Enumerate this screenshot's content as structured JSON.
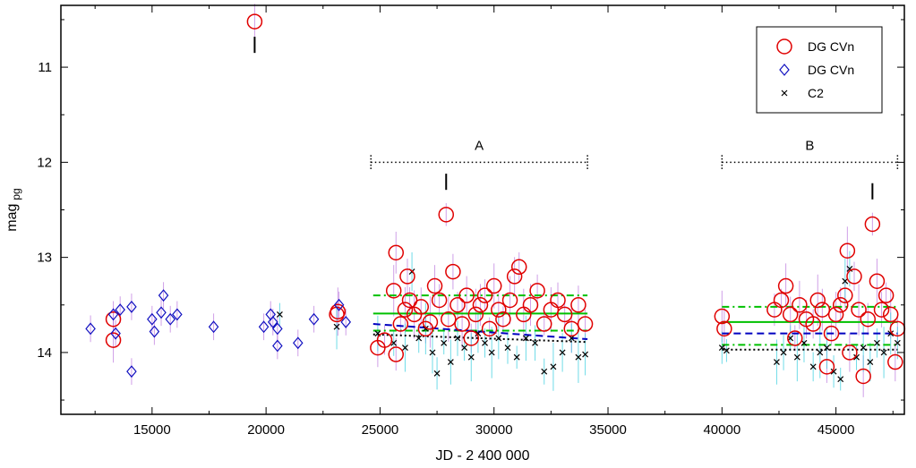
{
  "chart_data": {
    "type": "scatter",
    "title": "",
    "xlabel": "JD - 2 400 000",
    "ylabel_main": "mag",
    "ylabel_sub": "pg",
    "xlim": [
      11000,
      48000
    ],
    "ylim": [
      10.35,
      14.65
    ],
    "y_inverted": true,
    "xticks": [
      15000,
      20000,
      25000,
      30000,
      35000,
      40000,
      45000
    ],
    "yticks": [
      11,
      12,
      13,
      14
    ],
    "grid": false,
    "legend_position": "top-right",
    "colors": {
      "series_red": "#e00000",
      "series_blue": "#1010c0",
      "series_black": "#000000",
      "errorbar_cyan": "#40d0e0",
      "errorbar_violet": "#c080e0",
      "fit_blue": "#0000c0",
      "fit_green": "#00c000",
      "fit_black": "#000000"
    },
    "series": [
      {
        "name": "DG CVn",
        "marker": "circle",
        "color": "#e00000",
        "points": [
          [
            13300,
            13.65
          ],
          [
            13300,
            13.87
          ],
          [
            19500,
            10.52
          ],
          [
            23100,
            13.6
          ],
          [
            23150,
            13.57
          ],
          [
            24900,
            13.95
          ],
          [
            25200,
            13.87
          ],
          [
            25600,
            13.35
          ],
          [
            25700,
            12.95
          ],
          [
            25700,
            14.02
          ],
          [
            25900,
            13.7
          ],
          [
            26100,
            13.55
          ],
          [
            26200,
            13.2
          ],
          [
            26300,
            13.45
          ],
          [
            26500,
            13.6
          ],
          [
            26800,
            13.52
          ],
          [
            27000,
            13.75
          ],
          [
            27200,
            13.68
          ],
          [
            27400,
            13.3
          ],
          [
            27600,
            13.45
          ],
          [
            27900,
            12.55
          ],
          [
            28000,
            13.65
          ],
          [
            28200,
            13.15
          ],
          [
            28400,
            13.5
          ],
          [
            28600,
            13.7
          ],
          [
            28800,
            13.4
          ],
          [
            29000,
            13.85
          ],
          [
            29200,
            13.6
          ],
          [
            29400,
            13.5
          ],
          [
            29600,
            13.4
          ],
          [
            29800,
            13.75
          ],
          [
            30000,
            13.3
          ],
          [
            30200,
            13.55
          ],
          [
            30400,
            13.65
          ],
          [
            30700,
            13.45
          ],
          [
            30900,
            13.2
          ],
          [
            31100,
            13.1
          ],
          [
            31300,
            13.6
          ],
          [
            31600,
            13.5
          ],
          [
            31900,
            13.35
          ],
          [
            32200,
            13.7
          ],
          [
            32500,
            13.55
          ],
          [
            32800,
            13.45
          ],
          [
            33100,
            13.6
          ],
          [
            33400,
            13.75
          ],
          [
            33700,
            13.5
          ],
          [
            34000,
            13.7
          ],
          [
            40000,
            13.62
          ],
          [
            40100,
            13.75
          ],
          [
            42300,
            13.55
          ],
          [
            42600,
            13.45
          ],
          [
            42800,
            13.3
          ],
          [
            43000,
            13.6
          ],
          [
            43200,
            13.85
          ],
          [
            43400,
            13.5
          ],
          [
            43700,
            13.65
          ],
          [
            44000,
            13.7
          ],
          [
            44200,
            13.45
          ],
          [
            44400,
            13.55
          ],
          [
            44600,
            14.15
          ],
          [
            44800,
            13.8
          ],
          [
            45000,
            13.6
          ],
          [
            45200,
            13.5
          ],
          [
            45400,
            13.4
          ],
          [
            45500,
            12.93
          ],
          [
            45600,
            14.0
          ],
          [
            45800,
            13.2
          ],
          [
            46000,
            13.55
          ],
          [
            46200,
            14.25
          ],
          [
            46400,
            13.65
          ],
          [
            46600,
            12.65
          ],
          [
            46800,
            13.25
          ],
          [
            47000,
            13.55
          ],
          [
            47200,
            13.4
          ],
          [
            47400,
            13.6
          ],
          [
            47600,
            14.1
          ],
          [
            47700,
            13.75
          ]
        ]
      },
      {
        "name": "DG CVn",
        "marker": "diamond",
        "color": "#1010c0",
        "points": [
          [
            12300,
            13.75
          ],
          [
            13300,
            13.6
          ],
          [
            13400,
            13.8
          ],
          [
            13600,
            13.55
          ],
          [
            14100,
            14.2
          ],
          [
            14100,
            13.52
          ],
          [
            15000,
            13.65
          ],
          [
            15100,
            13.78
          ],
          [
            15400,
            13.58
          ],
          [
            15500,
            13.4
          ],
          [
            15800,
            13.65
          ],
          [
            16100,
            13.6
          ],
          [
            17700,
            13.73
          ],
          [
            19900,
            13.73
          ],
          [
            20200,
            13.6
          ],
          [
            20300,
            13.68
          ],
          [
            20500,
            13.75
          ],
          [
            20500,
            13.93
          ],
          [
            21400,
            13.9
          ],
          [
            22100,
            13.65
          ],
          [
            23200,
            13.5
          ],
          [
            23500,
            13.68
          ]
        ]
      },
      {
        "name": "C2",
        "marker": "cross",
        "color": "#000000",
        "points": [
          [
            20600,
            13.6
          ],
          [
            23100,
            13.73
          ],
          [
            24900,
            13.8
          ],
          [
            25600,
            13.9
          ],
          [
            26100,
            13.95
          ],
          [
            26400,
            13.15
          ],
          [
            26700,
            13.85
          ],
          [
            27000,
            13.75
          ],
          [
            27300,
            14.0
          ],
          [
            27500,
            14.22
          ],
          [
            27800,
            13.9
          ],
          [
            28100,
            14.1
          ],
          [
            28400,
            13.85
          ],
          [
            28700,
            13.95
          ],
          [
            29000,
            14.05
          ],
          [
            29300,
            13.8
          ],
          [
            29600,
            13.9
          ],
          [
            29900,
            14.0
          ],
          [
            30200,
            13.85
          ],
          [
            30600,
            13.95
          ],
          [
            31000,
            14.05
          ],
          [
            31400,
            13.85
          ],
          [
            31800,
            13.9
          ],
          [
            32200,
            14.2
          ],
          [
            32600,
            14.15
          ],
          [
            33000,
            14.0
          ],
          [
            33400,
            13.85
          ],
          [
            33700,
            14.05
          ],
          [
            34000,
            14.02
          ],
          [
            40000,
            13.95
          ],
          [
            40200,
            13.98
          ],
          [
            42400,
            14.1
          ],
          [
            42700,
            14.0
          ],
          [
            43000,
            13.85
          ],
          [
            43300,
            14.05
          ],
          [
            43600,
            13.9
          ],
          [
            44000,
            14.15
          ],
          [
            44300,
            14.0
          ],
          [
            44600,
            13.95
          ],
          [
            44900,
            14.2
          ],
          [
            45200,
            14.28
          ],
          [
            45400,
            13.25
          ],
          [
            45600,
            13.12
          ],
          [
            45900,
            14.05
          ],
          [
            46200,
            13.95
          ],
          [
            46500,
            14.1
          ],
          [
            46800,
            13.9
          ],
          [
            47100,
            14.0
          ],
          [
            47400,
            13.8
          ],
          [
            47700,
            13.9
          ]
        ]
      }
    ],
    "intervals": [
      {
        "label": "A",
        "x_start": 24600,
        "x_end": 34100,
        "y": 12.0
      },
      {
        "label": "B",
        "x_start": 40000,
        "x_end": 47700,
        "y": 12.0
      }
    ],
    "markers": [
      {
        "x": 19500,
        "y_top": 10.68,
        "y_bottom": 10.85
      },
      {
        "x": 27900,
        "y_top": 12.12,
        "y_bottom": 12.29
      },
      {
        "x": 46600,
        "y_top": 12.22,
        "y_bottom": 12.39
      }
    ],
    "fit_lines": [
      {
        "style": "dashdot",
        "color": "#00c000",
        "x_start": 24700,
        "x_end": 34100,
        "y_start": 13.4,
        "y_end": 13.4
      },
      {
        "style": "solid",
        "color": "#00c000",
        "x_start": 24700,
        "x_end": 34100,
        "y_start": 13.59,
        "y_end": 13.59
      },
      {
        "style": "dashdot",
        "color": "#00c000",
        "x_start": 24700,
        "x_end": 34100,
        "y_start": 13.77,
        "y_end": 13.77
      },
      {
        "style": "dashed",
        "color": "#0000c0",
        "x_start": 24700,
        "x_end": 34100,
        "y_start": 13.7,
        "y_end": 13.86
      },
      {
        "style": "dotted",
        "color": "#000000",
        "x_start": 24700,
        "x_end": 34100,
        "y_start": 13.81,
        "y_end": 13.89
      },
      {
        "style": "dashdot",
        "color": "#00c000",
        "x_start": 40000,
        "x_end": 47700,
        "y_start": 13.52,
        "y_end": 13.52
      },
      {
        "style": "solid",
        "color": "#00c000",
        "x_start": 40000,
        "x_end": 47700,
        "y_start": 13.68,
        "y_end": 13.68
      },
      {
        "style": "dashdot",
        "color": "#00c000",
        "x_start": 40000,
        "x_end": 47700,
        "y_start": 13.92,
        "y_end": 13.92
      },
      {
        "style": "dashed",
        "color": "#0000c0",
        "x_start": 40000,
        "x_end": 47700,
        "y_start": 13.8,
        "y_end": 13.8
      },
      {
        "style": "dotted",
        "color": "#000000",
        "x_start": 40000,
        "x_end": 47700,
        "y_start": 13.97,
        "y_end": 13.97
      }
    ]
  }
}
